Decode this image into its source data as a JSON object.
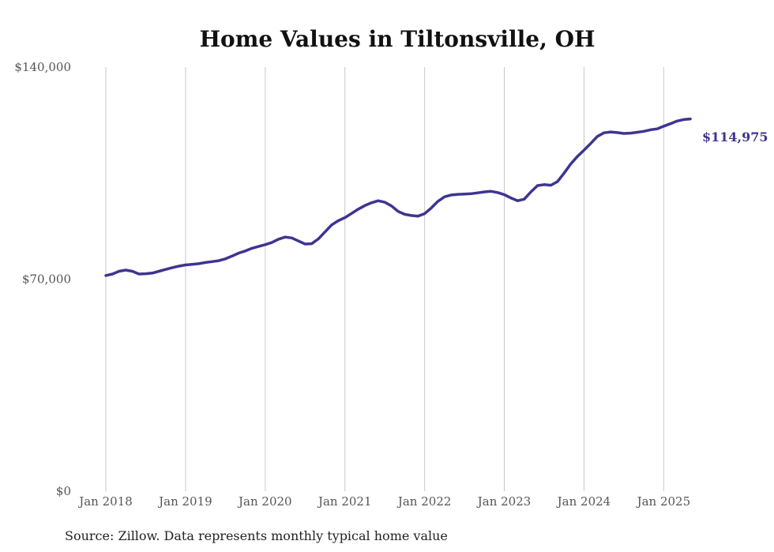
{
  "chart_data": {
    "type": "line",
    "title": "Home Values in Tiltonsville, OH",
    "source": "Source: Zillow. Data represents monthly typical home value",
    "y_ticks": [
      "$0",
      "$70,000",
      "$140,000"
    ],
    "x_ticks": [
      "Jan 2018",
      "Jan 2019",
      "Jan 2020",
      "Jan 2021",
      "Jan 2022",
      "Jan 2023",
      "Jan 2024",
      "Jan 2025"
    ],
    "ylim": [
      0,
      140000
    ],
    "xlim": [
      "2018-01",
      "2025-05"
    ],
    "grid": "vertical at each January",
    "line_color": "#3d3590",
    "end_label": "$114,975",
    "series": [
      {
        "x": [
          "2018-01",
          "2018-02",
          "2018-03",
          "2018-04",
          "2018-05",
          "2018-06",
          "2018-07",
          "2018-08",
          "2018-09",
          "2018-10",
          "2018-11",
          "2018-12",
          "2019-01",
          "2019-02",
          "2019-03",
          "2019-04",
          "2019-05",
          "2019-06",
          "2019-07",
          "2019-08",
          "2019-09",
          "2019-10",
          "2019-11",
          "2019-12",
          "2020-01",
          "2020-02",
          "2020-03",
          "2020-04",
          "2020-05",
          "2020-06",
          "2020-07",
          "2020-08",
          "2020-09",
          "2020-10",
          "2020-11",
          "2020-12",
          "2021-01",
          "2021-02",
          "2021-03",
          "2021-04",
          "2021-05",
          "2021-06",
          "2021-07",
          "2021-08",
          "2021-09",
          "2021-10",
          "2021-11",
          "2021-12",
          "2022-01",
          "2022-02",
          "2022-03",
          "2022-04",
          "2022-05",
          "2022-06",
          "2022-07",
          "2022-08",
          "2022-09",
          "2022-10",
          "2022-11",
          "2022-12",
          "2023-01",
          "2023-02",
          "2023-03",
          "2023-04",
          "2023-05",
          "2023-06",
          "2023-07",
          "2023-08",
          "2023-09",
          "2023-10",
          "2023-11",
          "2023-12",
          "2024-01",
          "2024-02",
          "2024-03",
          "2024-04",
          "2024-05",
          "2024-06",
          "2024-07",
          "2024-08",
          "2024-09",
          "2024-10",
          "2024-11",
          "2024-12",
          "2025-01",
          "2025-02",
          "2025-03",
          "2025-04",
          "2025-05"
        ],
        "y": [
          71200,
          71700,
          72600,
          73000,
          72600,
          71700,
          71800,
          72000,
          72600,
          73200,
          73800,
          74300,
          74700,
          74900,
          75100,
          75500,
          75800,
          76100,
          76700,
          77600,
          78600,
          79300,
          80200,
          80800,
          81400,
          82100,
          83200,
          83900,
          83600,
          82600,
          81600,
          81700,
          83300,
          85600,
          87900,
          89300,
          90300,
          91700,
          93100,
          94300,
          95200,
          95900,
          95400,
          94200,
          92400,
          91400,
          91000,
          90800,
          91600,
          93500,
          95700,
          97200,
          97800,
          98000,
          98100,
          98200,
          98500,
          98800,
          99000,
          98600,
          97900,
          96800,
          95900,
          96400,
          98800,
          100900,
          101200,
          101000,
          102200,
          105000,
          108000,
          110500,
          112600,
          114800,
          117100,
          118300,
          118600,
          118400,
          118100,
          118200,
          118500,
          118800,
          119300,
          119600,
          120500,
          121300,
          122200,
          122700,
          114975
        ]
      }
    ]
  }
}
